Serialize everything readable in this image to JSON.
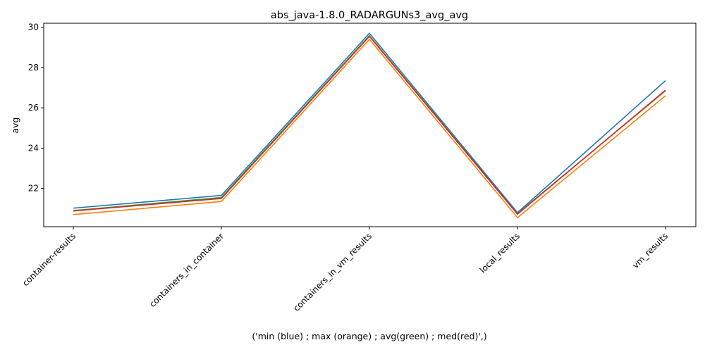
{
  "chart_data": {
    "type": "line",
    "title": "abs_java-1.8.0_RADARGUNs3_avg_avg",
    "xlabel": "('min (blue) ; max (orange) ; avg(green) ; med(red)',)",
    "ylabel": "avg",
    "categories": [
      "container-results",
      "containers_in_container",
      "containers_in_vm_results",
      "local_results",
      "vm_results"
    ],
    "yticks": [
      22,
      24,
      26,
      28,
      30
    ],
    "ylim": [
      20.1,
      30.2
    ],
    "grid": false,
    "series": [
      {
        "values": [
          20.7,
          21.35,
          29.4,
          20.55,
          26.6
        ],
        "color": "#ff7f0e"
      },
      {
        "values": [
          20.9,
          21.55,
          29.58,
          20.75,
          26.85
        ],
        "color": "#2ca02c"
      },
      {
        "values": [
          20.88,
          21.5,
          29.55,
          20.72,
          26.88
        ],
        "color": "#d62728"
      },
      {
        "values": [
          21.02,
          21.65,
          29.7,
          20.8,
          27.35
        ],
        "color": "#1f77b4"
      }
    ]
  }
}
